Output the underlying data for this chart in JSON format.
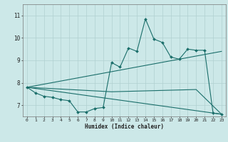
{
  "xlabel": "Humidex (Indice chaleur)",
  "bg_color": "#cce8e8",
  "grid_color": "#b0d0d0",
  "line_color": "#1a6e6a",
  "xlim": [
    -0.5,
    23.5
  ],
  "ylim": [
    6.5,
    11.5
  ],
  "yticks": [
    7,
    8,
    9,
    10,
    11
  ],
  "xticks": [
    0,
    1,
    2,
    3,
    4,
    5,
    6,
    7,
    8,
    9,
    10,
    11,
    12,
    13,
    14,
    15,
    16,
    17,
    18,
    19,
    20,
    21,
    22,
    23
  ],
  "series": [
    {
      "x": [
        0,
        1,
        2,
        3,
        4,
        5,
        6,
        7,
        8,
        9,
        10,
        11,
        12,
        13,
        14,
        15,
        16,
        17,
        18,
        19,
        20,
        21,
        22,
        23
      ],
      "y": [
        7.8,
        7.55,
        7.4,
        7.35,
        7.25,
        7.2,
        6.7,
        6.7,
        6.85,
        6.9,
        8.9,
        8.7,
        9.55,
        9.4,
        10.85,
        9.95,
        9.8,
        9.15,
        9.05,
        9.5,
        9.45,
        9.45,
        6.65,
        6.6
      ],
      "marker": true
    },
    {
      "x": [
        0,
        23
      ],
      "y": [
        7.8,
        9.4
      ],
      "marker": false
    },
    {
      "x": [
        0,
        23
      ],
      "y": [
        7.8,
        6.6
      ],
      "marker": false
    },
    {
      "x": [
        0,
        10,
        20,
        23
      ],
      "y": [
        7.8,
        7.6,
        7.7,
        6.6
      ],
      "marker": false
    }
  ]
}
